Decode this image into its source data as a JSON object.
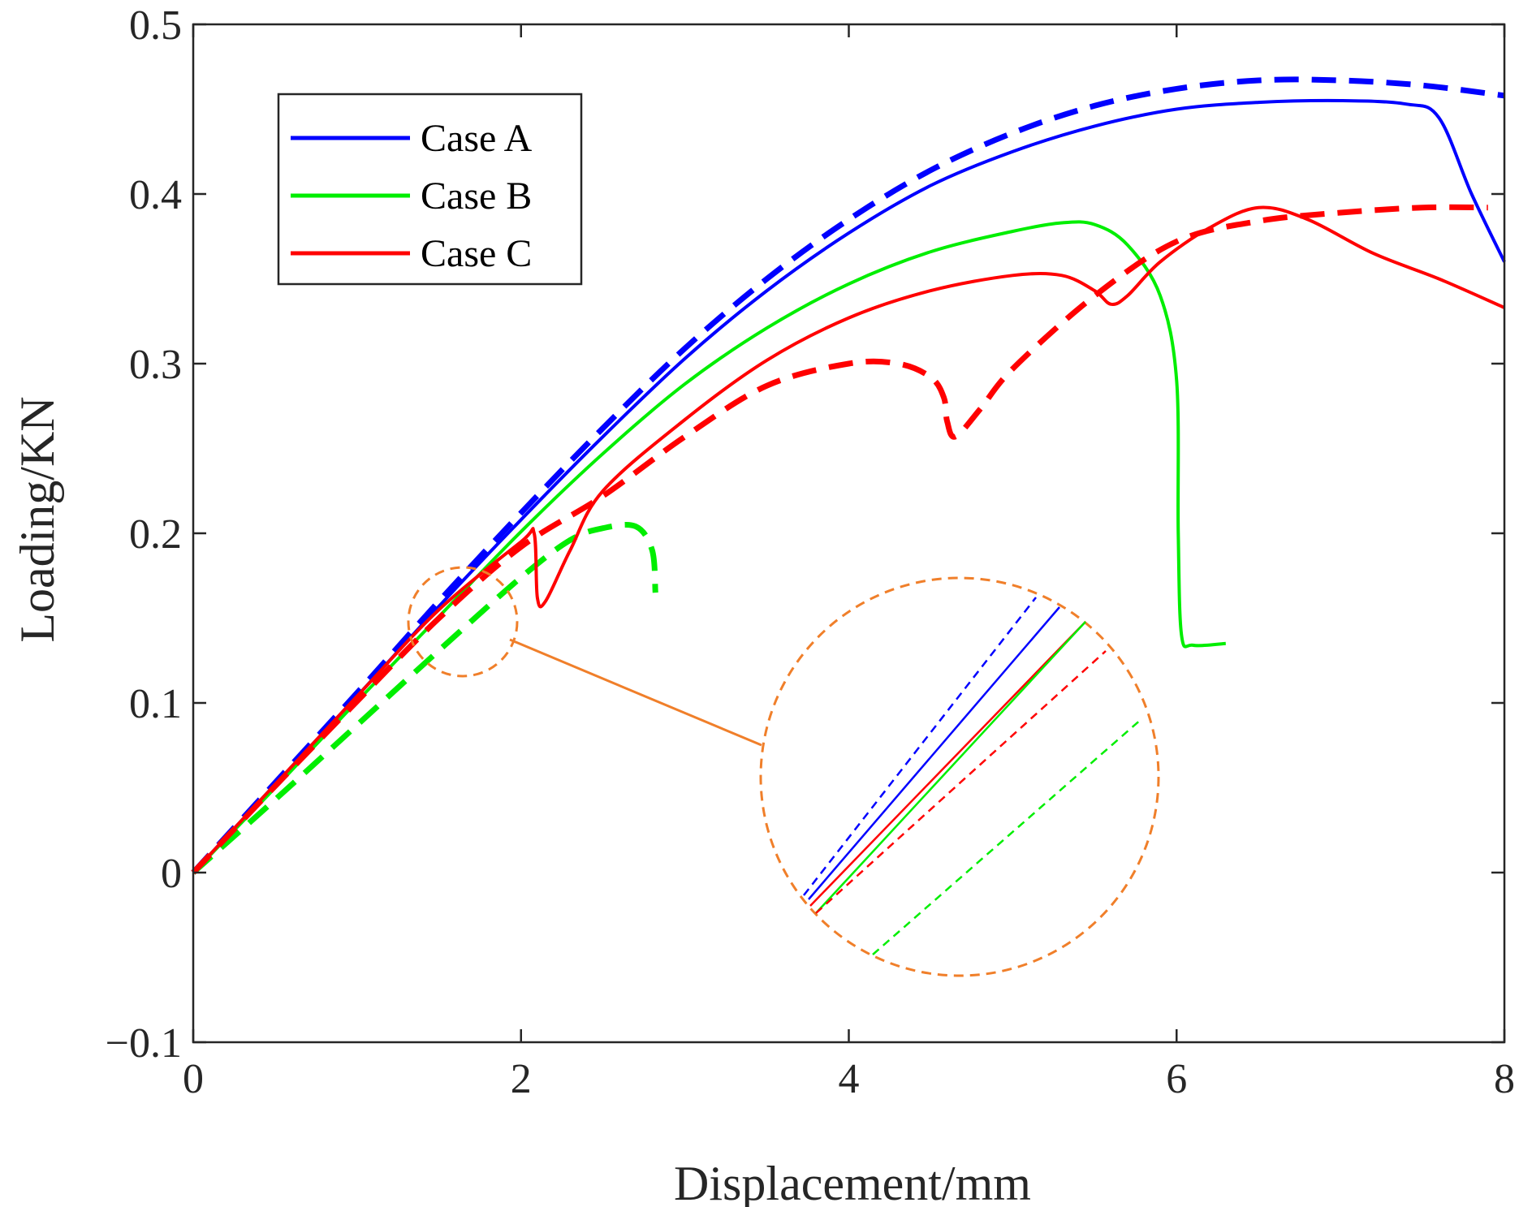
{
  "chart_data": {
    "type": "line",
    "title": "",
    "xlabel": "Displacement/mm",
    "ylabel": "Loading/KN",
    "xlim": [
      0,
      8
    ],
    "ylim": [
      -0.1,
      0.5
    ],
    "xticks": [
      0,
      2,
      4,
      6,
      8
    ],
    "xtick_labels": [
      "0",
      "2",
      "4",
      "6",
      "8"
    ],
    "yticks": [
      -0.1,
      0,
      0.1,
      0.2,
      0.3,
      0.4,
      0.5
    ],
    "ytick_labels": [
      "−0.1",
      "0",
      "0.1",
      "0.2",
      "0.3",
      "0.4",
      "0.5"
    ],
    "legend_position": "top-left",
    "legend": [
      {
        "label": "Case A",
        "color": "#0000ff"
      },
      {
        "label": "Case B",
        "color": "#00ee00"
      },
      {
        "label": "Case C",
        "color": "#ff0000"
      }
    ],
    "series": [
      {
        "name": "Case A",
        "style": "solid",
        "color": "#0000ff",
        "x": [
          0,
          0.5,
          1.0,
          1.5,
          2.0,
          2.5,
          3.0,
          3.5,
          4.0,
          4.5,
          5.0,
          5.5,
          6.0,
          6.5,
          7.0,
          7.4,
          7.6,
          7.8,
          8.0
        ],
        "y": [
          0,
          0.052,
          0.104,
          0.157,
          0.208,
          0.257,
          0.303,
          0.343,
          0.377,
          0.405,
          0.425,
          0.44,
          0.45,
          0.454,
          0.455,
          0.453,
          0.445,
          0.4,
          0.36
        ]
      },
      {
        "name": "Case A (dashed)",
        "style": "dashed",
        "color": "#0000ff",
        "x": [
          0,
          0.5,
          1.0,
          1.5,
          2.0,
          2.5,
          3.0,
          3.5,
          4.0,
          4.5,
          5.0,
          5.5,
          6.0,
          6.5,
          7.0,
          7.5,
          8.0
        ],
        "y": [
          0,
          0.053,
          0.106,
          0.16,
          0.212,
          0.262,
          0.309,
          0.35,
          0.385,
          0.414,
          0.436,
          0.452,
          0.462,
          0.467,
          0.467,
          0.464,
          0.458
        ]
      },
      {
        "name": "Case B",
        "style": "solid",
        "color": "#00ee00",
        "x": [
          0,
          0.5,
          1.0,
          1.5,
          2.0,
          2.5,
          3.0,
          3.5,
          4.0,
          4.5,
          5.0,
          5.3,
          5.5,
          5.7,
          5.9,
          6.0,
          6.01,
          6.03,
          6.1,
          6.3
        ],
        "y": [
          0,
          0.05,
          0.101,
          0.151,
          0.201,
          0.247,
          0.288,
          0.321,
          0.347,
          0.366,
          0.378,
          0.383,
          0.382,
          0.37,
          0.34,
          0.29,
          0.2,
          0.14,
          0.134,
          0.135
        ]
      },
      {
        "name": "Case B (dashed)",
        "style": "dashed",
        "color": "#00ee00",
        "x": [
          0,
          0.5,
          1.0,
          1.5,
          2.0,
          2.3,
          2.5,
          2.7,
          2.8,
          2.82
        ],
        "y": [
          0,
          0.043,
          0.087,
          0.131,
          0.174,
          0.196,
          0.203,
          0.204,
          0.19,
          0.165
        ]
      },
      {
        "name": "Case C",
        "style": "solid",
        "color": "#ff0000",
        "x": [
          0,
          0.5,
          1.0,
          1.5,
          2.0,
          2.08,
          2.1,
          2.15,
          2.3,
          2.5,
          3.0,
          3.5,
          4.0,
          4.5,
          5.0,
          5.3,
          5.5,
          5.6,
          5.7,
          5.9,
          6.2,
          6.5,
          6.8,
          7.2,
          7.6,
          8.0
        ],
        "y": [
          0,
          0.052,
          0.104,
          0.155,
          0.195,
          0.2,
          0.162,
          0.16,
          0.19,
          0.225,
          0.267,
          0.302,
          0.327,
          0.343,
          0.352,
          0.352,
          0.343,
          0.335,
          0.34,
          0.36,
          0.38,
          0.392,
          0.385,
          0.365,
          0.35,
          0.333
        ]
      },
      {
        "name": "Case C (dashed)",
        "style": "dashed",
        "color": "#ff0000",
        "x": [
          0,
          0.5,
          1.0,
          1.5,
          2.0,
          2.5,
          3.0,
          3.5,
          4.0,
          4.3,
          4.5,
          4.58,
          4.6,
          4.65,
          4.8,
          5.0,
          5.5,
          6.0,
          6.5,
          7.0,
          7.5,
          7.9
        ],
        "y": [
          0,
          0.051,
          0.101,
          0.15,
          0.192,
          0.222,
          0.257,
          0.287,
          0.3,
          0.3,
          0.292,
          0.28,
          0.266,
          0.257,
          0.273,
          0.297,
          0.34,
          0.372,
          0.384,
          0.389,
          0.392,
          0.392
        ]
      }
    ],
    "inset": {
      "shape": "circle",
      "color": "#f07f2a",
      "note": "magnified view of the marked region near x=1.5, y=0.15"
    }
  }
}
